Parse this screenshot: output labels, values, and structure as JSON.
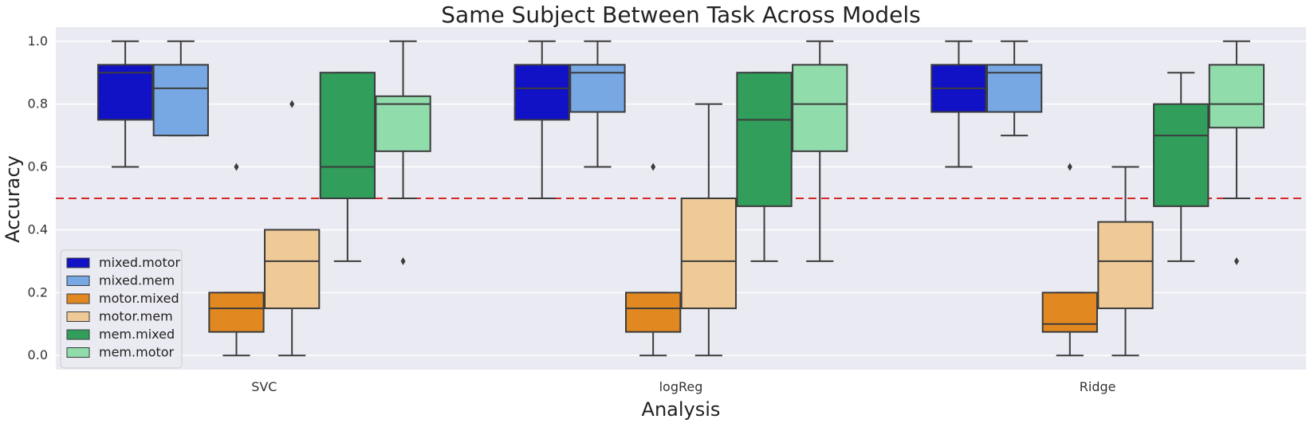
{
  "chart_data": {
    "type": "box",
    "title": "Same Subject Between Task Across Models",
    "xlabel": "Analysis",
    "ylabel": "Accuracy",
    "ylim": [
      -0.045,
      1.045
    ],
    "yticks": [
      "0.0",
      "0.2",
      "0.4",
      "0.6",
      "0.8",
      "1.0"
    ],
    "grid": true,
    "legend_position": "lower-left",
    "reference_line": {
      "y": 0.5,
      "style": "dashed",
      "color": "#d62728"
    },
    "categories": [
      "SVC",
      "logReg",
      "Ridge"
    ],
    "series": [
      {
        "name": "mixed.motor",
        "color": "#1111c6",
        "boxes": [
          {
            "whisker_low": 0.6,
            "q1": 0.75,
            "median": 0.9,
            "q3": 0.925,
            "whisker_high": 1.0,
            "outliers": []
          },
          {
            "whisker_low": 0.5,
            "q1": 0.75,
            "median": 0.85,
            "q3": 0.925,
            "whisker_high": 1.0,
            "outliers": []
          },
          {
            "whisker_low": 0.6,
            "q1": 0.775,
            "median": 0.85,
            "q3": 0.925,
            "whisker_high": 1.0,
            "outliers": []
          }
        ]
      },
      {
        "name": "mixed.mem",
        "color": "#77a8e3",
        "boxes": [
          {
            "whisker_low": 0.7,
            "q1": 0.7,
            "median": 0.85,
            "q3": 0.925,
            "whisker_high": 1.0,
            "outliers": []
          },
          {
            "whisker_low": 0.6,
            "q1": 0.775,
            "median": 0.9,
            "q3": 0.925,
            "whisker_high": 1.0,
            "outliers": []
          },
          {
            "whisker_low": 0.7,
            "q1": 0.775,
            "median": 0.9,
            "q3": 0.925,
            "whisker_high": 1.0,
            "outliers": []
          }
        ]
      },
      {
        "name": "motor.mixed",
        "color": "#e28821",
        "boxes": [
          {
            "whisker_low": 0.0,
            "q1": 0.075,
            "median": 0.15,
            "q3": 0.2,
            "whisker_high": 0.2,
            "outliers": [
              0.6
            ]
          },
          {
            "whisker_low": 0.0,
            "q1": 0.075,
            "median": 0.15,
            "q3": 0.2,
            "whisker_high": 0.2,
            "outliers": [
              0.6
            ]
          },
          {
            "whisker_low": 0.0,
            "q1": 0.075,
            "median": 0.1,
            "q3": 0.2,
            "whisker_high": 0.2,
            "outliers": [
              0.6
            ]
          }
        ]
      },
      {
        "name": "motor.mem",
        "color": "#efca96",
        "boxes": [
          {
            "whisker_low": 0.0,
            "q1": 0.15,
            "median": 0.3,
            "q3": 0.4,
            "whisker_high": 0.4,
            "outliers": [
              0.8
            ]
          },
          {
            "whisker_low": 0.0,
            "q1": 0.15,
            "median": 0.3,
            "q3": 0.5,
            "whisker_high": 0.8,
            "outliers": []
          },
          {
            "whisker_low": 0.0,
            "q1": 0.15,
            "median": 0.3,
            "q3": 0.425,
            "whisker_high": 0.6,
            "outliers": []
          }
        ]
      },
      {
        "name": "mem.mixed",
        "color": "#319e5c",
        "boxes": [
          {
            "whisker_low": 0.3,
            "q1": 0.5,
            "median": 0.6,
            "q3": 0.9,
            "whisker_high": 0.9,
            "outliers": []
          },
          {
            "whisker_low": 0.3,
            "q1": 0.475,
            "median": 0.75,
            "q3": 0.9,
            "whisker_high": 0.9,
            "outliers": []
          },
          {
            "whisker_low": 0.3,
            "q1": 0.475,
            "median": 0.7,
            "q3": 0.8,
            "whisker_high": 0.9,
            "outliers": []
          }
        ]
      },
      {
        "name": "mem.motor",
        "color": "#90dcab",
        "boxes": [
          {
            "whisker_low": 0.5,
            "q1": 0.65,
            "median": 0.8,
            "q3": 0.825,
            "whisker_high": 1.0,
            "outliers": [
              0.3
            ]
          },
          {
            "whisker_low": 0.3,
            "q1": 0.65,
            "median": 0.8,
            "q3": 0.925,
            "whisker_high": 1.0,
            "outliers": []
          },
          {
            "whisker_low": 0.5,
            "q1": 0.725,
            "median": 0.8,
            "q3": 0.925,
            "whisker_high": 1.0,
            "outliers": [
              0.3
            ]
          }
        ]
      }
    ]
  }
}
